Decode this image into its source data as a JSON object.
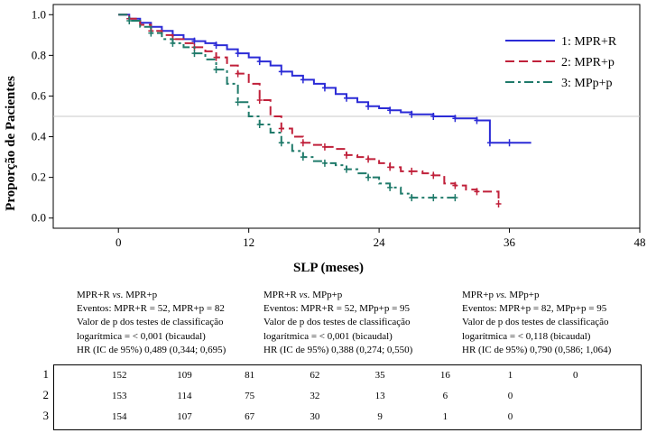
{
  "chart_data": {
    "type": "line",
    "subtype": "kaplan-meier",
    "xlabel": "SLP (meses)",
    "ylabel": "Proporção de Pacientes",
    "xlim": [
      -6,
      48
    ],
    "ylim": [
      -0.05,
      1.05
    ],
    "xticks": [
      0,
      12,
      24,
      36,
      48
    ],
    "yticks": [
      "0.0",
      "0.2",
      "0.4",
      "0.6",
      "0.8",
      "1.0"
    ],
    "reference_line_y": 0.5,
    "legend_position": "top-right",
    "series": [
      {
        "name": "1: MPR+R",
        "color": "#2b2bd6",
        "dash": "solid",
        "x": [
          0,
          1,
          2,
          3,
          4,
          5,
          6,
          7,
          8,
          9,
          10,
          11,
          12,
          13,
          14,
          15,
          16,
          17,
          18,
          19,
          20,
          21,
          22,
          23,
          24,
          25,
          26,
          27,
          28,
          29,
          30,
          31,
          32,
          33,
          34,
          34.2,
          35,
          36,
          38
        ],
        "y": [
          1.0,
          0.98,
          0.96,
          0.94,
          0.92,
          0.9,
          0.88,
          0.87,
          0.86,
          0.85,
          0.83,
          0.81,
          0.79,
          0.77,
          0.75,
          0.72,
          0.7,
          0.68,
          0.66,
          0.64,
          0.61,
          0.59,
          0.57,
          0.55,
          0.54,
          0.53,
          0.52,
          0.51,
          0.51,
          0.5,
          0.5,
          0.49,
          0.49,
          0.48,
          0.48,
          0.37,
          0.37,
          0.37,
          0.37
        ]
      },
      {
        "name": "2: MPR+p",
        "color": "#c0203a",
        "dash": "dashed",
        "x": [
          0,
          1,
          2,
          3,
          4,
          5,
          6,
          7,
          8,
          9,
          10,
          11,
          12,
          13,
          14,
          15,
          16,
          17,
          18,
          19,
          20,
          21,
          22,
          23,
          24,
          25,
          26,
          27,
          28,
          29,
          30,
          31,
          32,
          33,
          34,
          35
        ],
        "y": [
          1.0,
          0.98,
          0.95,
          0.92,
          0.9,
          0.88,
          0.86,
          0.84,
          0.82,
          0.79,
          0.75,
          0.71,
          0.66,
          0.58,
          0.5,
          0.44,
          0.4,
          0.37,
          0.36,
          0.35,
          0.34,
          0.31,
          0.3,
          0.29,
          0.27,
          0.25,
          0.23,
          0.23,
          0.22,
          0.21,
          0.17,
          0.16,
          0.14,
          0.13,
          0.13,
          0.07
        ]
      },
      {
        "name": "3: MPp+p",
        "color": "#1f7a6a",
        "dash": "dashdot",
        "x": [
          0,
          1,
          2,
          3,
          4,
          5,
          6,
          7,
          8,
          9,
          10,
          11,
          12,
          13,
          14,
          15,
          16,
          17,
          18,
          19,
          20,
          21,
          22,
          23,
          24,
          25,
          26,
          27,
          28,
          29,
          30,
          31
        ],
        "y": [
          1.0,
          0.97,
          0.94,
          0.91,
          0.88,
          0.86,
          0.84,
          0.81,
          0.78,
          0.73,
          0.66,
          0.57,
          0.5,
          0.46,
          0.42,
          0.37,
          0.33,
          0.3,
          0.28,
          0.27,
          0.26,
          0.24,
          0.22,
          0.2,
          0.17,
          0.15,
          0.12,
          0.1,
          0.1,
          0.1,
          0.1,
          0.1
        ]
      }
    ]
  },
  "comparisons": [
    {
      "title_a": "MPR+R",
      "vs": "vs.",
      "title_b": "MPR+p",
      "events": "Eventos: MPR+R = 52, MPR+p = 82",
      "pvalue_line1": "Valor de p dos testes de classificação",
      "pvalue_line2": "logarítmica = < 0,001 (bicaudal)",
      "hr": "HR (IC de 95%) 0,489 (0,344; 0,695)"
    },
    {
      "title_a": "MPR+R",
      "vs": "vs.",
      "title_b": "MPp+p",
      "events": "Eventos: MPR+R = 52, MPp+p = 95",
      "pvalue_line1": "Valor de p dos testes de classificação",
      "pvalue_line2": "logarítmica = < 0,001 (bicaudal)",
      "hr": "HR (IC de 95%) 0,388 (0,274; 0,550)"
    },
    {
      "title_a": "MPR+p",
      "vs": "vs.",
      "title_b": "MPp+p",
      "events": "Eventos: MPR+p = 82, MPp+p = 95",
      "pvalue_line1": "Valor de p dos testes de classificação",
      "pvalue_line2": "logarítmica = < 0,118 (bicaudal)",
      "hr": "HR (IC de 95%) 0,790 (0,586; 1,064)"
    }
  ],
  "risk_table": {
    "rows": [
      {
        "label": "1",
        "values": [
          "152",
          "109",
          "81",
          "62",
          "35",
          "16",
          "1",
          "0"
        ]
      },
      {
        "label": "2",
        "values": [
          "153",
          "114",
          "75",
          "32",
          "13",
          "6",
          "0"
        ]
      },
      {
        "label": "3",
        "values": [
          "154",
          "107",
          "67",
          "30",
          "9",
          "1",
          "0"
        ]
      }
    ]
  }
}
